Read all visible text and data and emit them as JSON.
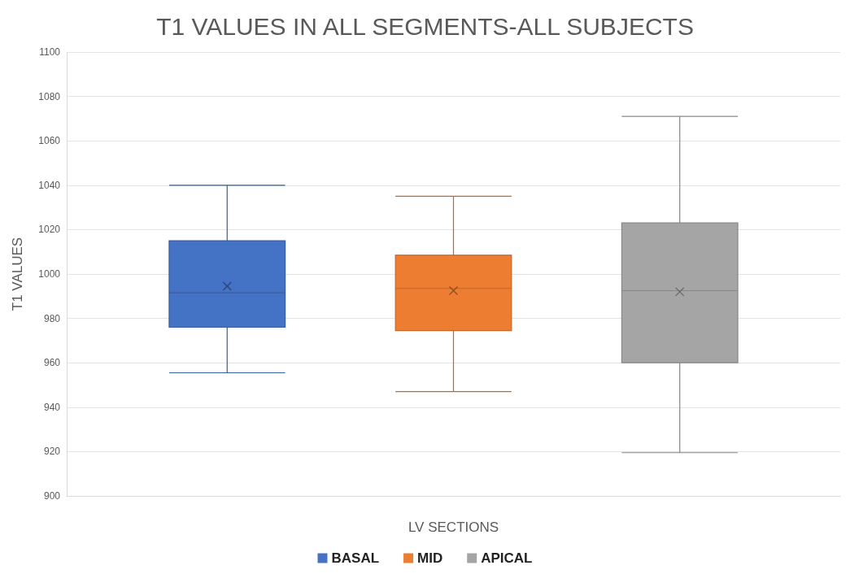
{
  "chart_data": {
    "type": "box",
    "title": "T1 VALUES IN ALL SEGMENTS-ALL SUBJECTS",
    "xlabel": "LV SECTIONS",
    "ylabel": "T1 VALUES",
    "categories": [
      null
    ],
    "series": [
      {
        "name": "BASAL",
        "color": "#4472c4",
        "boxes": [
          {
            "low": 955.5,
            "q1": 976,
            "median": 991.5,
            "q3": 1015,
            "high": 1040,
            "mean": 994.5
          }
        ]
      },
      {
        "name": "MID",
        "color": "#ed7d31",
        "boxes": [
          {
            "low": 947,
            "q1": 974.5,
            "median": 993.5,
            "q3": 1008.5,
            "high": 1035,
            "mean": 992.5
          }
        ]
      },
      {
        "name": "APICAL",
        "color": "#a5a5a5",
        "boxes": [
          {
            "low": 919.5,
            "q1": 960,
            "median": 992.5,
            "q3": 1023,
            "high": 1071,
            "mean": 992
          }
        ]
      }
    ],
    "ylim": [
      900,
      1100
    ],
    "yticks": [
      900,
      920,
      940,
      960,
      980,
      1000,
      1020,
      1040,
      1060,
      1080,
      1100
    ],
    "grid": "y",
    "legend": "bottom",
    "marker": "cross"
  }
}
